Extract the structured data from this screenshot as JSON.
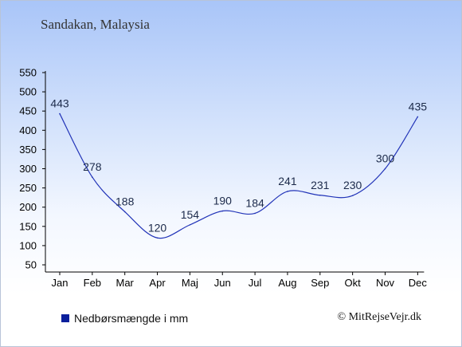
{
  "title": "Sandakan, Malaysia",
  "legend_label": "Nedbørsmængde i mm",
  "credit": "© MitRejseVejr.dk",
  "line_color": "#2234b8",
  "legend_color": "#0a1f9c",
  "chart_data": {
    "type": "line",
    "title": "Sandakan, Malaysia",
    "xlabel": "",
    "ylabel": "",
    "categories": [
      "Jan",
      "Feb",
      "Mar",
      "Apr",
      "Maj",
      "Jun",
      "Jul",
      "Aug",
      "Sep",
      "Okt",
      "Nov",
      "Dec"
    ],
    "series": [
      {
        "name": "Nedbørsmængde i mm",
        "values": [
          443,
          278,
          188,
          120,
          154,
          190,
          184,
          241,
          231,
          230,
          300,
          435
        ]
      }
    ],
    "yticks": [
      50,
      100,
      150,
      200,
      250,
      300,
      350,
      400,
      450,
      500,
      550
    ],
    "ylim": [
      50,
      550
    ],
    "grid": false,
    "legend_position": "bottom-left"
  }
}
